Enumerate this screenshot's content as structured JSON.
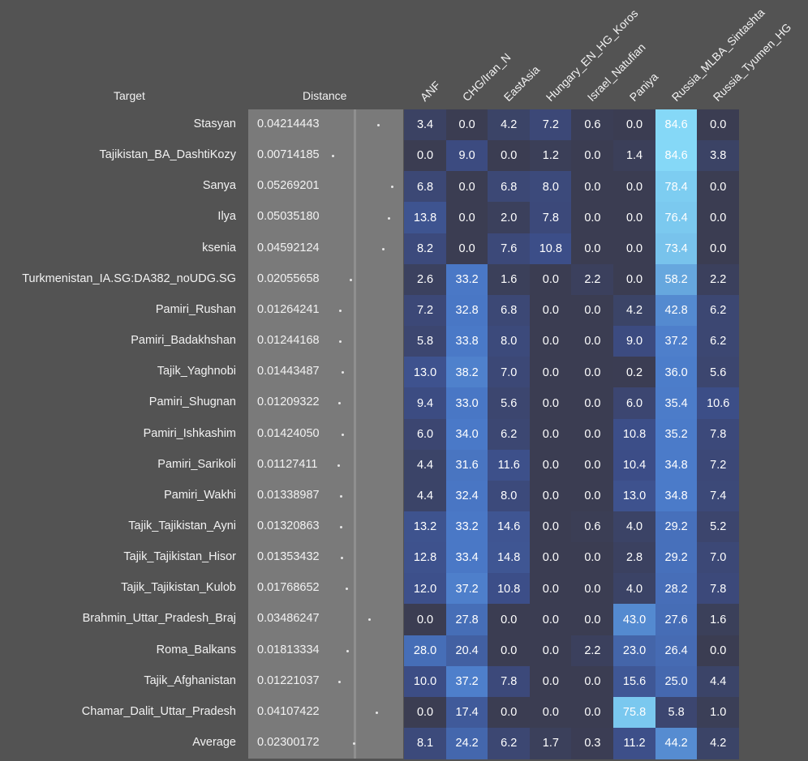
{
  "headers": {
    "target": "Target",
    "distance": "Distance"
  },
  "columns": [
    "ANF",
    "CHG/Iran_N",
    "EastAsia",
    "Hungary_EN_HG_Koros",
    "Israel_Natufian",
    "Paniya",
    "Russia_MLBA_Sintashta",
    "Russia_Tyumen_HG"
  ],
  "rows": [
    {
      "target": "Stasyan",
      "distance": "0.04214443",
      "values": [
        "3.4",
        "0.0",
        "4.2",
        "7.2",
        "0.6",
        "0.0",
        "84.6",
        "0.0"
      ]
    },
    {
      "target": "Tajikistan_BA_DashtiKozy",
      "distance": "0.00714185",
      "values": [
        "0.0",
        "9.0",
        "0.0",
        "1.2",
        "0.0",
        "1.4",
        "84.6",
        "3.8"
      ]
    },
    {
      "target": "Sanya",
      "distance": "0.05269201",
      "values": [
        "6.8",
        "0.0",
        "6.8",
        "8.0",
        "0.0",
        "0.0",
        "78.4",
        "0.0"
      ]
    },
    {
      "target": "Ilya",
      "distance": "0.05035180",
      "values": [
        "13.8",
        "0.0",
        "2.0",
        "7.8",
        "0.0",
        "0.0",
        "76.4",
        "0.0"
      ]
    },
    {
      "target": "ksenia",
      "distance": "0.04592124",
      "values": [
        "8.2",
        "0.0",
        "7.6",
        "10.8",
        "0.0",
        "0.0",
        "73.4",
        "0.0"
      ]
    },
    {
      "target": "Turkmenistan_IA.SG:DA382_noUDG.SG",
      "distance": "0.02055658",
      "values": [
        "2.6",
        "33.2",
        "1.6",
        "0.0",
        "2.2",
        "0.0",
        "58.2",
        "2.2"
      ]
    },
    {
      "target": "Pamiri_Rushan",
      "distance": "0.01264241",
      "values": [
        "7.2",
        "32.8",
        "6.8",
        "0.0",
        "0.0",
        "4.2",
        "42.8",
        "6.2"
      ]
    },
    {
      "target": "Pamiri_Badakhshan",
      "distance": "0.01244168",
      "values": [
        "5.8",
        "33.8",
        "8.0",
        "0.0",
        "0.0",
        "9.0",
        "37.2",
        "6.2"
      ]
    },
    {
      "target": "Tajik_Yaghnobi",
      "distance": "0.01443487",
      "values": [
        "13.0",
        "38.2",
        "7.0",
        "0.0",
        "0.0",
        "0.2",
        "36.0",
        "5.6"
      ]
    },
    {
      "target": "Pamiri_Shugnan",
      "distance": "0.01209322",
      "values": [
        "9.4",
        "33.0",
        "5.6",
        "0.0",
        "0.0",
        "6.0",
        "35.4",
        "10.6"
      ]
    },
    {
      "target": "Pamiri_Ishkashim",
      "distance": "0.01424050",
      "values": [
        "6.0",
        "34.0",
        "6.2",
        "0.0",
        "0.0",
        "10.8",
        "35.2",
        "7.8"
      ]
    },
    {
      "target": "Pamiri_Sarikoli",
      "distance": "0.01127411",
      "values": [
        "4.4",
        "31.6",
        "11.6",
        "0.0",
        "0.0",
        "10.4",
        "34.8",
        "7.2"
      ]
    },
    {
      "target": "Pamiri_Wakhi",
      "distance": "0.01338987",
      "values": [
        "4.4",
        "32.4",
        "8.0",
        "0.0",
        "0.0",
        "13.0",
        "34.8",
        "7.4"
      ]
    },
    {
      "target": "Tajik_Tajikistan_Ayni",
      "distance": "0.01320863",
      "values": [
        "13.2",
        "33.2",
        "14.6",
        "0.0",
        "0.6",
        "4.0",
        "29.2",
        "5.2"
      ]
    },
    {
      "target": "Tajik_Tajikistan_Hisor",
      "distance": "0.01353432",
      "values": [
        "12.8",
        "33.4",
        "14.8",
        "0.0",
        "0.0",
        "2.8",
        "29.2",
        "7.0"
      ]
    },
    {
      "target": "Tajik_Tajikistan_Kulob",
      "distance": "0.01768652",
      "values": [
        "12.0",
        "37.2",
        "10.8",
        "0.0",
        "0.0",
        "4.0",
        "28.2",
        "7.8"
      ]
    },
    {
      "target": "Brahmin_Uttar_Pradesh_Braj",
      "distance": "0.03486247",
      "values": [
        "0.0",
        "27.8",
        "0.0",
        "0.0",
        "0.0",
        "43.0",
        "27.6",
        "1.6"
      ]
    },
    {
      "target": "Roma_Balkans",
      "distance": "0.01813334",
      "values": [
        "28.0",
        "20.4",
        "0.0",
        "0.0",
        "2.2",
        "23.0",
        "26.4",
        "0.0"
      ]
    },
    {
      "target": "Tajik_Afghanistan",
      "distance": "0.01221037",
      "values": [
        "10.0",
        "37.2",
        "7.8",
        "0.0",
        "0.0",
        "15.6",
        "25.0",
        "4.4"
      ]
    },
    {
      "target": "Chamar_Dalit_Uttar_Pradesh",
      "distance": "0.04107422",
      "values": [
        "0.0",
        "17.4",
        "0.0",
        "0.0",
        "0.0",
        "75.8",
        "5.8",
        "1.0"
      ]
    },
    {
      "target": "Average",
      "distance": "0.02300172",
      "values": [
        "8.1",
        "24.2",
        "6.2",
        "1.7",
        "0.3",
        "11.2",
        "44.2",
        "4.2"
      ]
    }
  ],
  "colors": {
    "background": "#535353",
    "distance_panel": "#7a7a7a",
    "heat_low": "#3b3d52",
    "heat_high": "#85d9f7"
  }
}
